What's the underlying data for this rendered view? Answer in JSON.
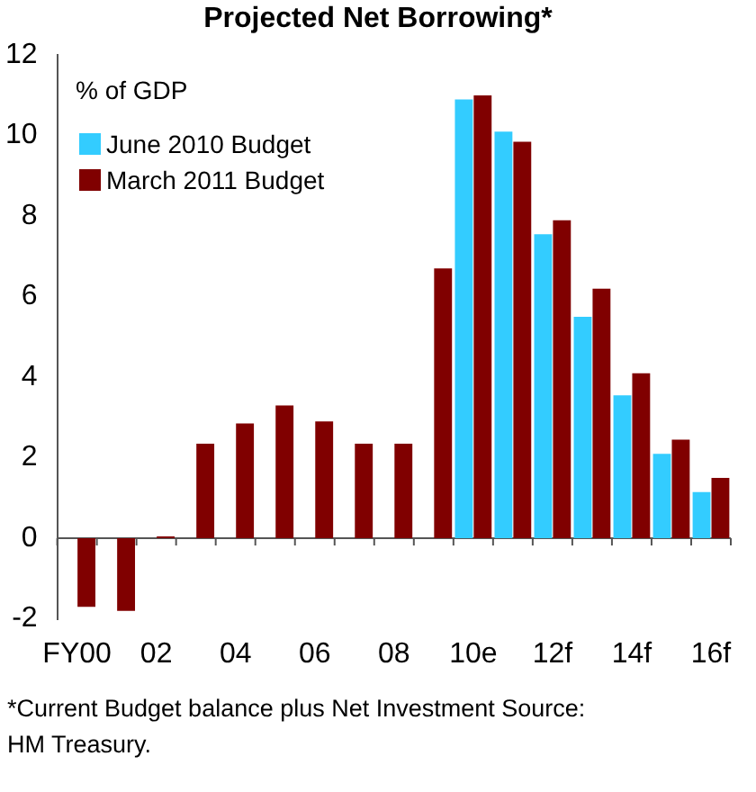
{
  "chart_data": {
    "type": "bar",
    "title": "Projected Net Borrowing*",
    "ylabel": "% of GDP",
    "categories": [
      "FY00",
      null,
      "02",
      null,
      "04",
      null,
      "06",
      null,
      "08",
      null,
      "10e",
      null,
      "12f",
      null,
      "14f",
      null,
      "16f"
    ],
    "series": [
      {
        "name": "June 2010 Budget",
        "color": "#33ccff",
        "values": [
          null,
          null,
          null,
          null,
          null,
          null,
          null,
          null,
          null,
          null,
          10.9,
          10.1,
          7.55,
          5.5,
          3.55,
          2.1,
          1.15
        ]
      },
      {
        "name": "March 2011 Budget",
        "color": "#800000",
        "values": [
          -1.7,
          -1.8,
          0.05,
          2.35,
          2.85,
          3.3,
          2.9,
          2.35,
          2.35,
          6.7,
          11.0,
          9.85,
          7.9,
          6.2,
          4.1,
          2.45,
          1.5
        ]
      }
    ],
    "ylim": [
      -2,
      12
    ],
    "yticks": [
      -2,
      0,
      2,
      4,
      6,
      8,
      10,
      12
    ],
    "legend": "top left",
    "annotations": [
      "*Current Budget balance plus Net Investment  Source: HM Treasury."
    ]
  }
}
